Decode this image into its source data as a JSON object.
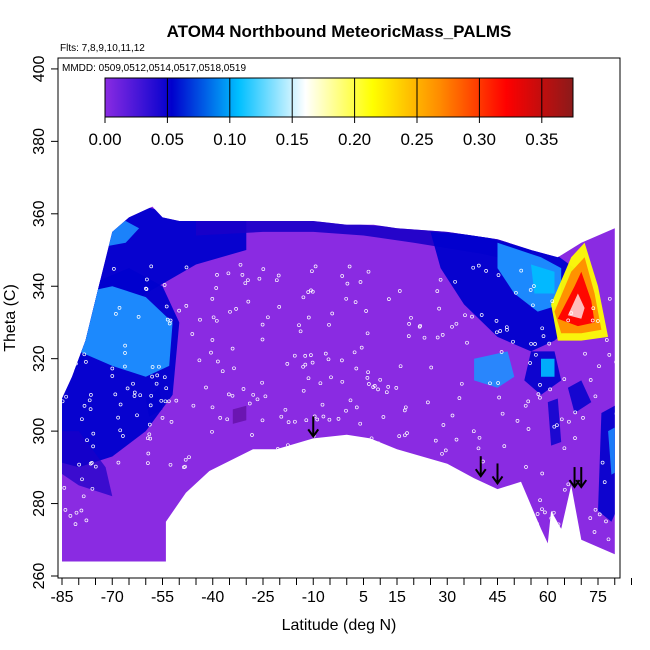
{
  "chart_data": {
    "type": "heatmap",
    "title": "ATOM4 Northbound MeteoricMass_PALMS",
    "flights_note": "Flts: 7,8,9,10,11,12",
    "dates_note": "MMDD: 0509,0512,0514,0517,0518,0519",
    "xlabel": "Latitude (deg N)",
    "ylabel": "Theta (C)",
    "x_ticks": [
      "-85",
      "-70",
      "-55",
      "-40",
      "-25",
      "-10",
      "5",
      "15",
      "30",
      "45",
      "60",
      "75"
    ],
    "y_ticks": [
      "260",
      "280",
      "300",
      "320",
      "340",
      "360",
      "380",
      "400"
    ],
    "colorbar": {
      "ticks": [
        "0.00",
        "0.05",
        "0.10",
        "0.15",
        "0.20",
        "0.25",
        "0.30",
        "0.35"
      ],
      "range": [
        0,
        0.375
      ],
      "colors": [
        "#8a2be2",
        "#0000cd",
        "#00bfff",
        "#ffffff",
        "#ffff00",
        "#ff8c00",
        "#ff0000",
        "#8b1a1a"
      ]
    },
    "xlim": [
      -88,
      85
    ],
    "ylim": [
      260,
      404
    ],
    "lower_boundary": [
      [
        -85,
        264
      ],
      [
        -54,
        264
      ],
      [
        -54,
        275
      ],
      [
        -48,
        283
      ],
      [
        -41,
        289
      ],
      [
        -28,
        295
      ],
      [
        -21,
        295
      ],
      [
        -10,
        298
      ],
      [
        0,
        299
      ],
      [
        7,
        298
      ],
      [
        15,
        295
      ],
      [
        30,
        291
      ],
      [
        38,
        287
      ],
      [
        45,
        284
      ],
      [
        52,
        286
      ],
      [
        58,
        273
      ],
      [
        60,
        269
      ],
      [
        61,
        278
      ],
      [
        64,
        273
      ],
      [
        67,
        285
      ],
      [
        70,
        270
      ],
      [
        75,
        268
      ],
      [
        80,
        266
      ]
    ],
    "upper_boundary": [
      [
        -85,
        309
      ],
      [
        -82,
        315
      ],
      [
        -78,
        325
      ],
      [
        -74,
        340
      ],
      [
        -70,
        355
      ],
      [
        -65,
        359
      ],
      [
        -58,
        362
      ],
      [
        -55,
        359
      ],
      [
        -50,
        358
      ],
      [
        -45,
        358
      ],
      [
        -30,
        358
      ],
      [
        -20,
        358
      ],
      [
        -10,
        358
      ],
      [
        0,
        357
      ],
      [
        8,
        357
      ],
      [
        15,
        356
      ],
      [
        30,
        355
      ],
      [
        45,
        353
      ],
      [
        55,
        350
      ],
      [
        63,
        348
      ],
      [
        70,
        352
      ],
      [
        80,
        356
      ]
    ],
    "arrows_lat": [
      -10,
      40,
      45,
      68,
      70
    ],
    "arrows_theta": [
      298,
      287,
      285,
      284,
      284
    ]
  }
}
